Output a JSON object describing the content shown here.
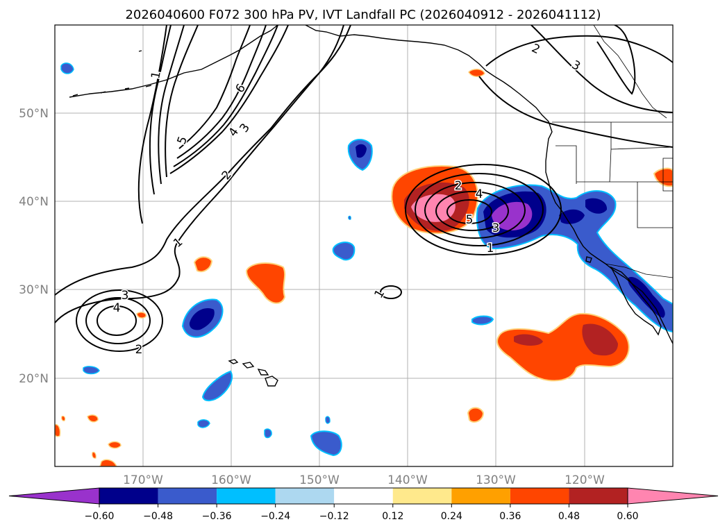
{
  "title": "2026040600 F072 300 hPa PV, IVT Landfall PC (2026040912 - 2026041112)",
  "lat_labels": [
    "50°N",
    "40°N",
    "30°N",
    "20°N"
  ],
  "lon_labels": [
    "170°W",
    "160°W",
    "150°W",
    "140°W",
    "130°W",
    "120°W"
  ],
  "colorbar": {
    "tick_labels": [
      "−0.60",
      "−0.48",
      "−0.36",
      "−0.24",
      "−0.12",
      "0.12",
      "0.24",
      "0.36",
      "0.48",
      "0.60"
    ],
    "colors": [
      "#9932cc",
      "#00008b",
      "#3a5bcc",
      "#00bfff",
      "#add8f0",
      "#ffffff",
      "#ffe98c",
      "#ffa000",
      "#ff4500",
      "#b22222",
      "#ff85b0"
    ]
  },
  "contour_labels": [
    "1",
    "5",
    "6",
    "4",
    "3",
    "2",
    "1",
    "3",
    "4",
    "2",
    "2",
    "4",
    "5",
    "3",
    "1",
    "1",
    "2",
    "3"
  ],
  "map": {
    "projection": "PlateCarree",
    "extent": {
      "lon": [
        -180,
        -110
      ],
      "lat": [
        10,
        60
      ]
    },
    "gridlines": true
  }
}
